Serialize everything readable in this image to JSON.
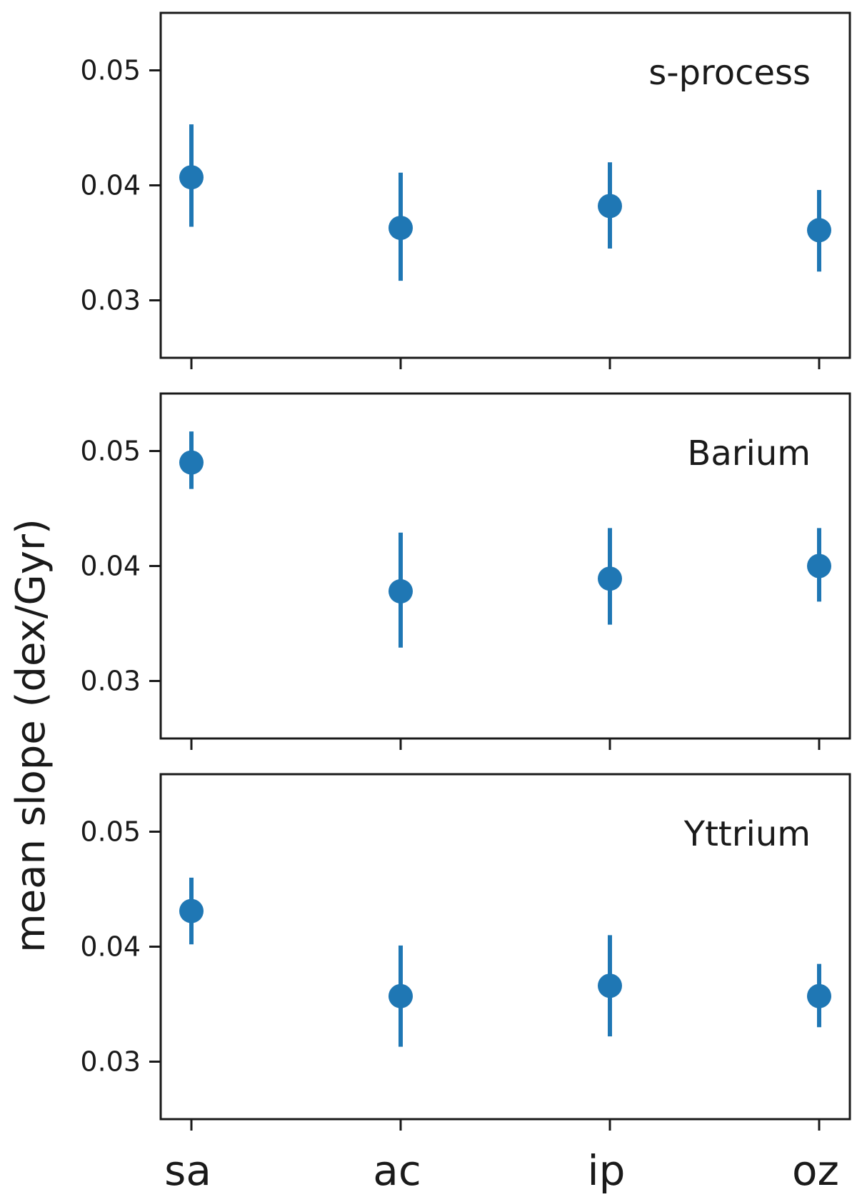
{
  "chart_data": {
    "type": "scatter",
    "categories": [
      "sa",
      "ac",
      "ip",
      "oz"
    ],
    "ylabel": "mean slope (dex/Gyr)",
    "ylim": [
      0.025,
      0.055
    ],
    "yticks": [
      "0.03",
      "0.04",
      "0.05"
    ],
    "ytick_values": [
      0.03,
      0.04,
      0.05
    ],
    "grid": false,
    "marker_color": "#1f77b4",
    "panels": [
      {
        "title": "s-process",
        "values": [
          0.0407,
          0.0363,
          0.0382,
          0.0361
        ],
        "err_low": [
          0.0364,
          0.0317,
          0.0345,
          0.0325
        ],
        "err_high": [
          0.0453,
          0.0411,
          0.042,
          0.0396
        ]
      },
      {
        "title": "Barium",
        "values": [
          0.049,
          0.0378,
          0.0389,
          0.04
        ],
        "err_low": [
          0.0467,
          0.0329,
          0.0349,
          0.0369
        ],
        "err_high": [
          0.0517,
          0.0429,
          0.0433,
          0.0433
        ]
      },
      {
        "title": "Yttrium",
        "values": [
          0.0431,
          0.0357,
          0.0366,
          0.0357
        ],
        "err_low": [
          0.0402,
          0.0313,
          0.0322,
          0.033
        ],
        "err_high": [
          0.046,
          0.0401,
          0.041,
          0.0385
        ]
      }
    ]
  }
}
